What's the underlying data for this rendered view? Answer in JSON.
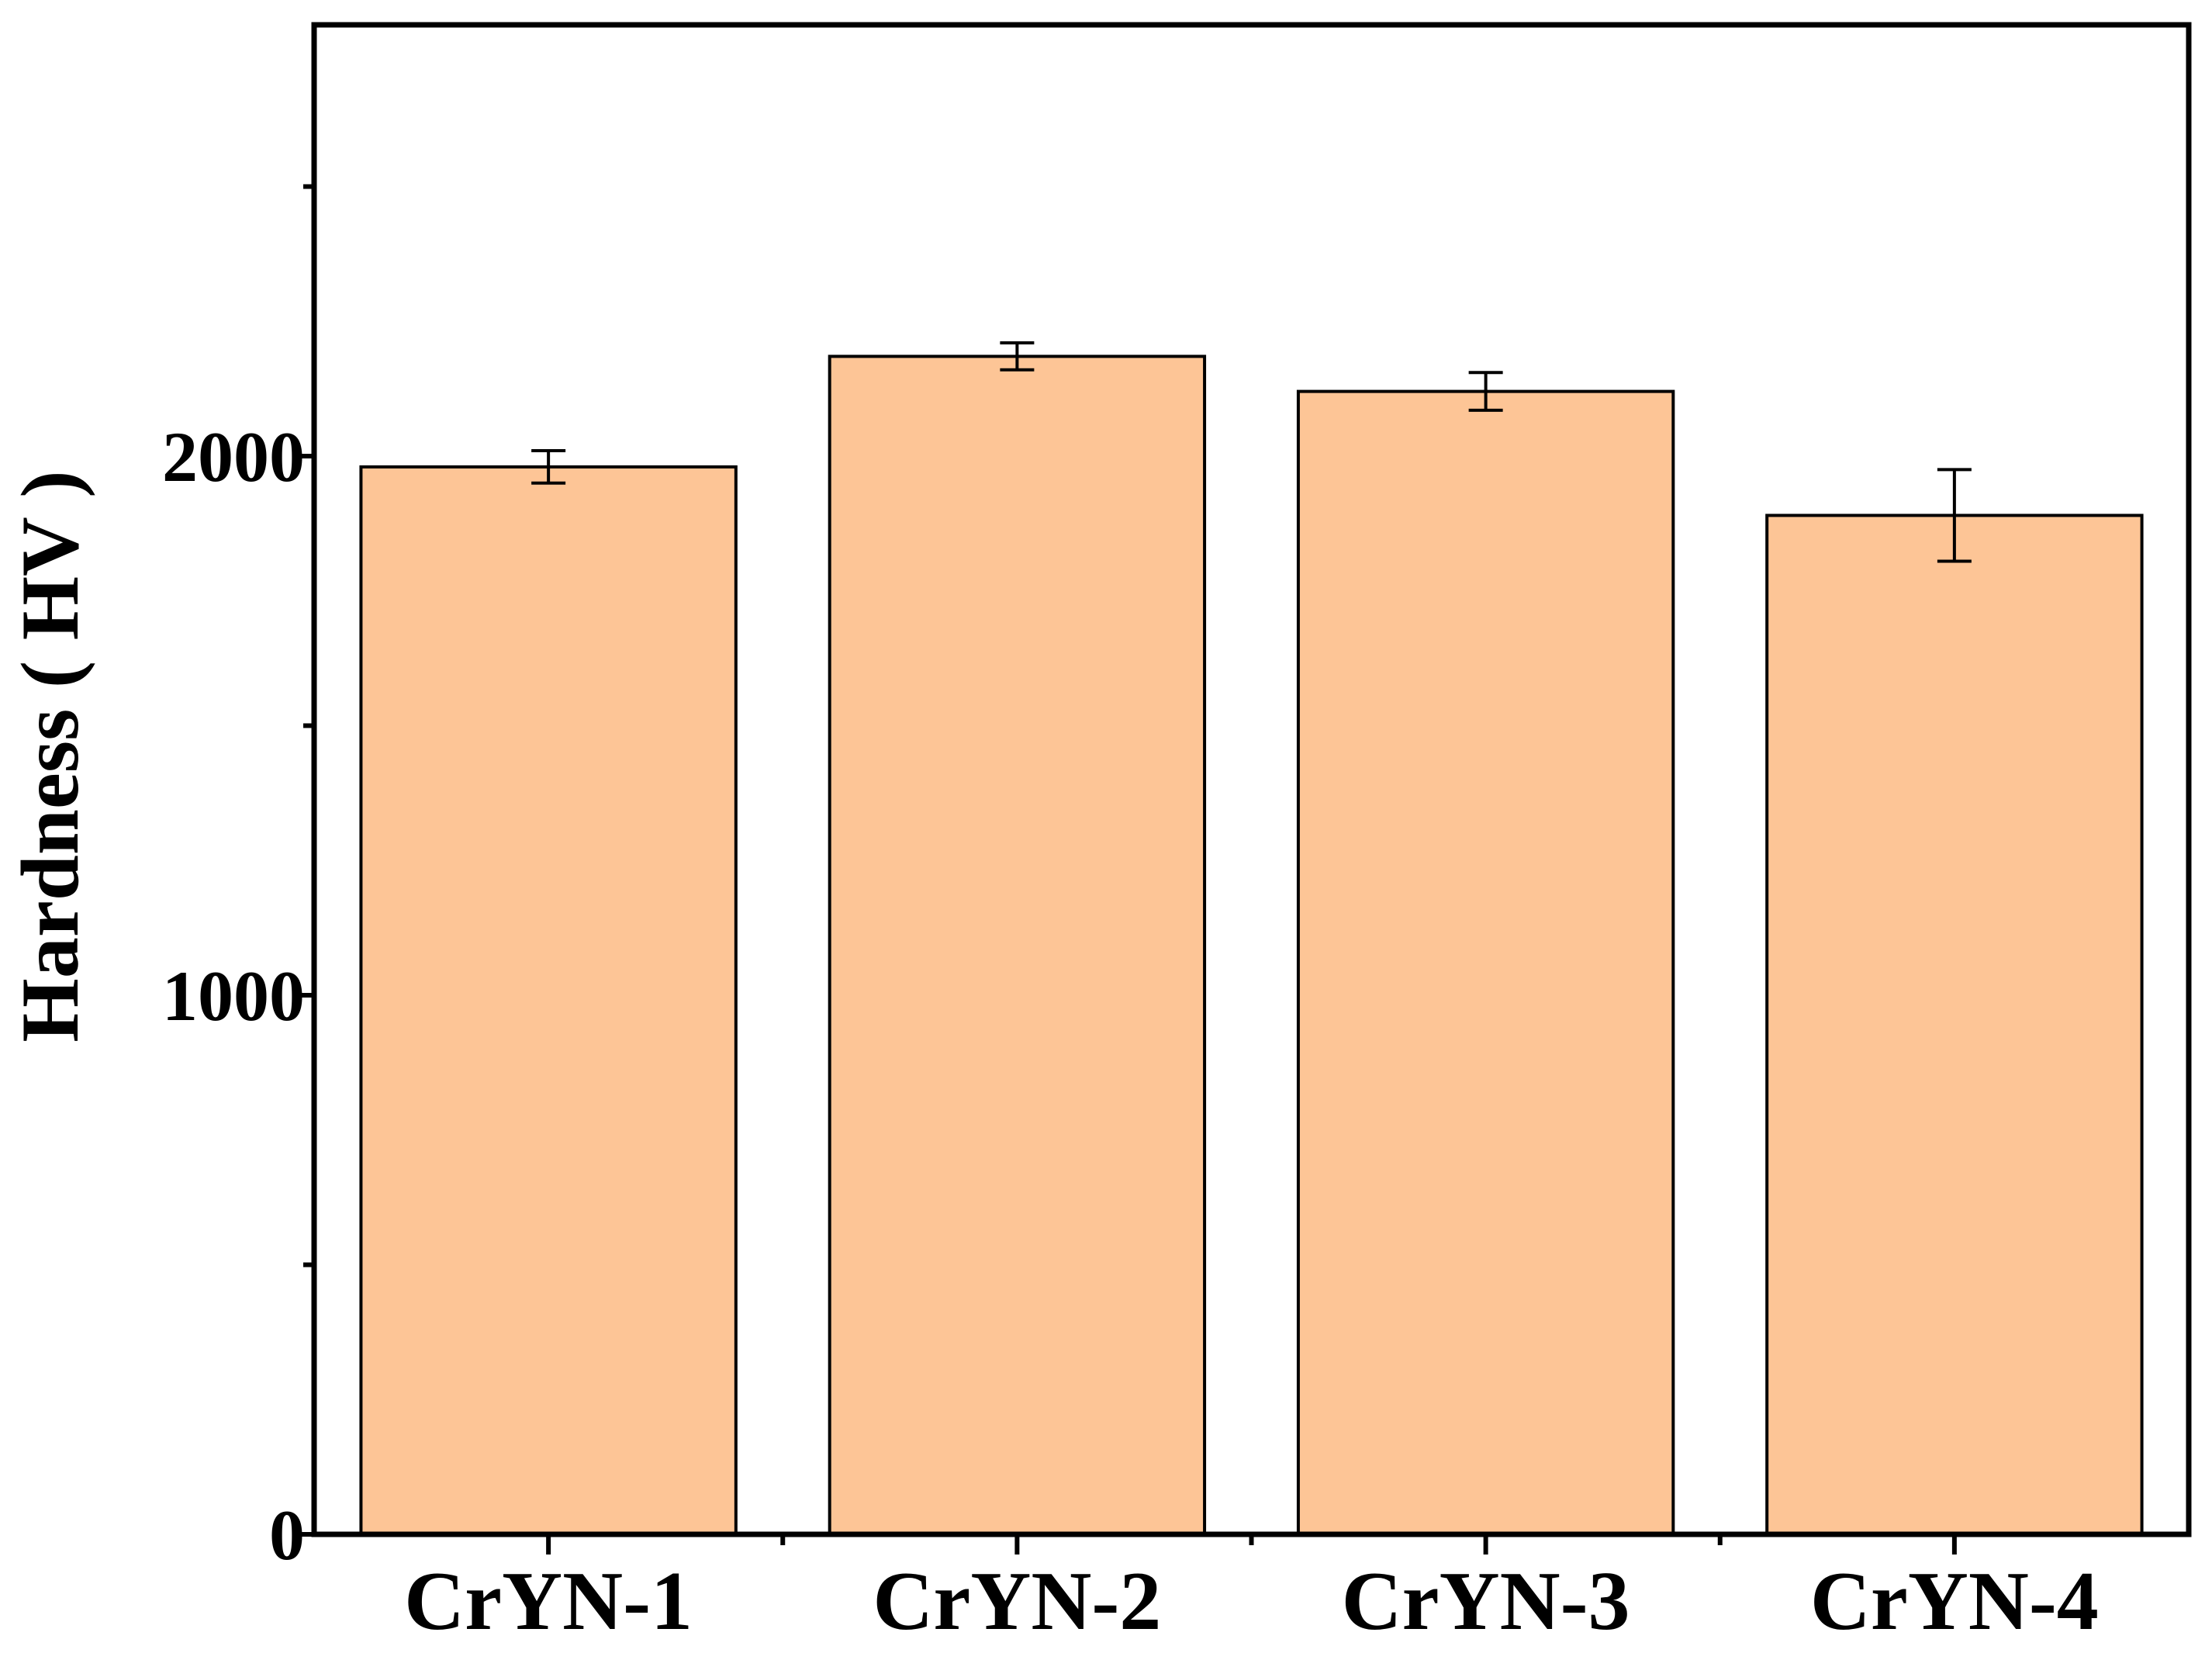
{
  "chart_data": {
    "type": "bar",
    "categories": [
      "CrYN-1",
      "CrYN-2",
      "CrYN-3",
      "CrYN-4"
    ],
    "series": [
      {
        "values": [
          1980,
          2185,
          2120,
          1890
        ],
        "errors": [
          30,
          25,
          35,
          85
        ]
      }
    ],
    "title": "",
    "xlabel": "",
    "ylabel": "Hardness ( HV )",
    "ylim": [
      0,
      2800
    ],
    "yticks": [
      0,
      1000,
      2000
    ],
    "y_minor_ticks": [
      500,
      1500,
      2500
    ],
    "grid": false,
    "bar_color": "#FDC596",
    "edge_color": "#000000"
  }
}
